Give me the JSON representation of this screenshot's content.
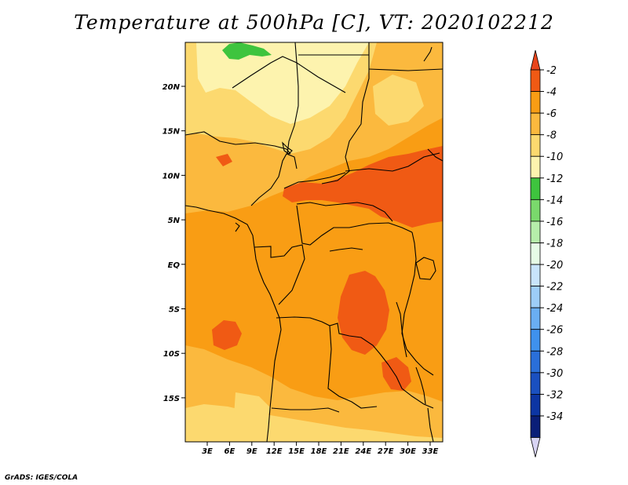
{
  "title": "Temperature at 500hPa [C], VT: 2020102212",
  "credit": "GrADS: IGES/COLA",
  "map": {
    "lon_labels": [
      "3E",
      "6E",
      "9E",
      "12E",
      "15E",
      "18E",
      "21E",
      "24E",
      "27E",
      "30E",
      "33E"
    ],
    "lat_labels": [
      "20N",
      "15N",
      "10N",
      "5N",
      "EQ",
      "5S",
      "10S",
      "15S"
    ]
  },
  "colorbar": {
    "labels": [
      "-2",
      "-4",
      "-6",
      "-8",
      "-10",
      "-12",
      "-14",
      "-16",
      "-18",
      "-20",
      "-22",
      "-24",
      "-26",
      "-28",
      "-30",
      "-32",
      "-34"
    ],
    "colors": [
      "#f05a14",
      "#f99d14",
      "#fbb93e",
      "#fcd96f",
      "#fdf3ae",
      "#3ec43e",
      "#7ad96c",
      "#b6eeaa",
      "#e6fbe6",
      "#c8e4fb",
      "#9dcdf8",
      "#6aaef2",
      "#3f91ed",
      "#2a6fd9",
      "#1a50c0",
      "#0c35a3",
      "#0a1e78"
    ],
    "top_triangle_color": "#e8451c",
    "bottom_triangle_color": "#d8d4f4"
  }
}
